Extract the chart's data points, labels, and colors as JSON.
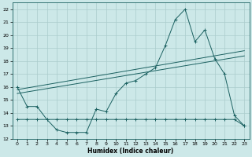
{
  "xlabel": "Humidex (Indice chaleur)",
  "background_color": "#cce8e8",
  "grid_color": "#aacccc",
  "line_color": "#1a6060",
  "xlim": [
    -0.5,
    23.5
  ],
  "ylim": [
    12,
    22.5
  ],
  "yticks": [
    12,
    13,
    14,
    15,
    16,
    17,
    18,
    19,
    20,
    21,
    22
  ],
  "xticks": [
    0,
    1,
    2,
    3,
    4,
    5,
    6,
    7,
    8,
    9,
    10,
    11,
    12,
    13,
    14,
    15,
    16,
    17,
    18,
    19,
    20,
    21,
    22,
    23
  ],
  "series1_x": [
    0,
    1,
    2,
    3,
    4,
    5,
    6,
    7,
    8,
    9,
    10,
    11,
    12,
    13,
    14,
    15,
    16,
    17,
    18,
    19,
    20,
    21,
    22,
    23
  ],
  "series1_y": [
    16.0,
    14.5,
    14.5,
    13.5,
    12.7,
    12.5,
    12.5,
    12.5,
    14.3,
    14.1,
    15.5,
    16.3,
    16.5,
    17.0,
    17.5,
    19.2,
    21.2,
    22.0,
    19.5,
    20.4,
    18.2,
    17.0,
    13.8,
    13.0
  ],
  "series2_x": [
    0,
    1,
    2,
    3,
    4,
    5,
    6,
    7,
    8,
    9,
    10,
    11,
    12,
    13,
    14,
    15,
    16,
    17,
    18,
    19,
    20,
    21,
    22,
    23
  ],
  "series2_y": [
    13.5,
    13.5,
    13.5,
    13.5,
    13.5,
    13.5,
    13.5,
    13.5,
    13.5,
    13.5,
    13.5,
    13.5,
    13.5,
    13.5,
    13.5,
    13.5,
    13.5,
    13.5,
    13.5,
    13.5,
    13.5,
    13.5,
    13.5,
    13.0
  ],
  "series3_y0": 15.5,
  "series3_y1": 18.4,
  "series4_y0": 15.8,
  "series4_y1": 18.8
}
